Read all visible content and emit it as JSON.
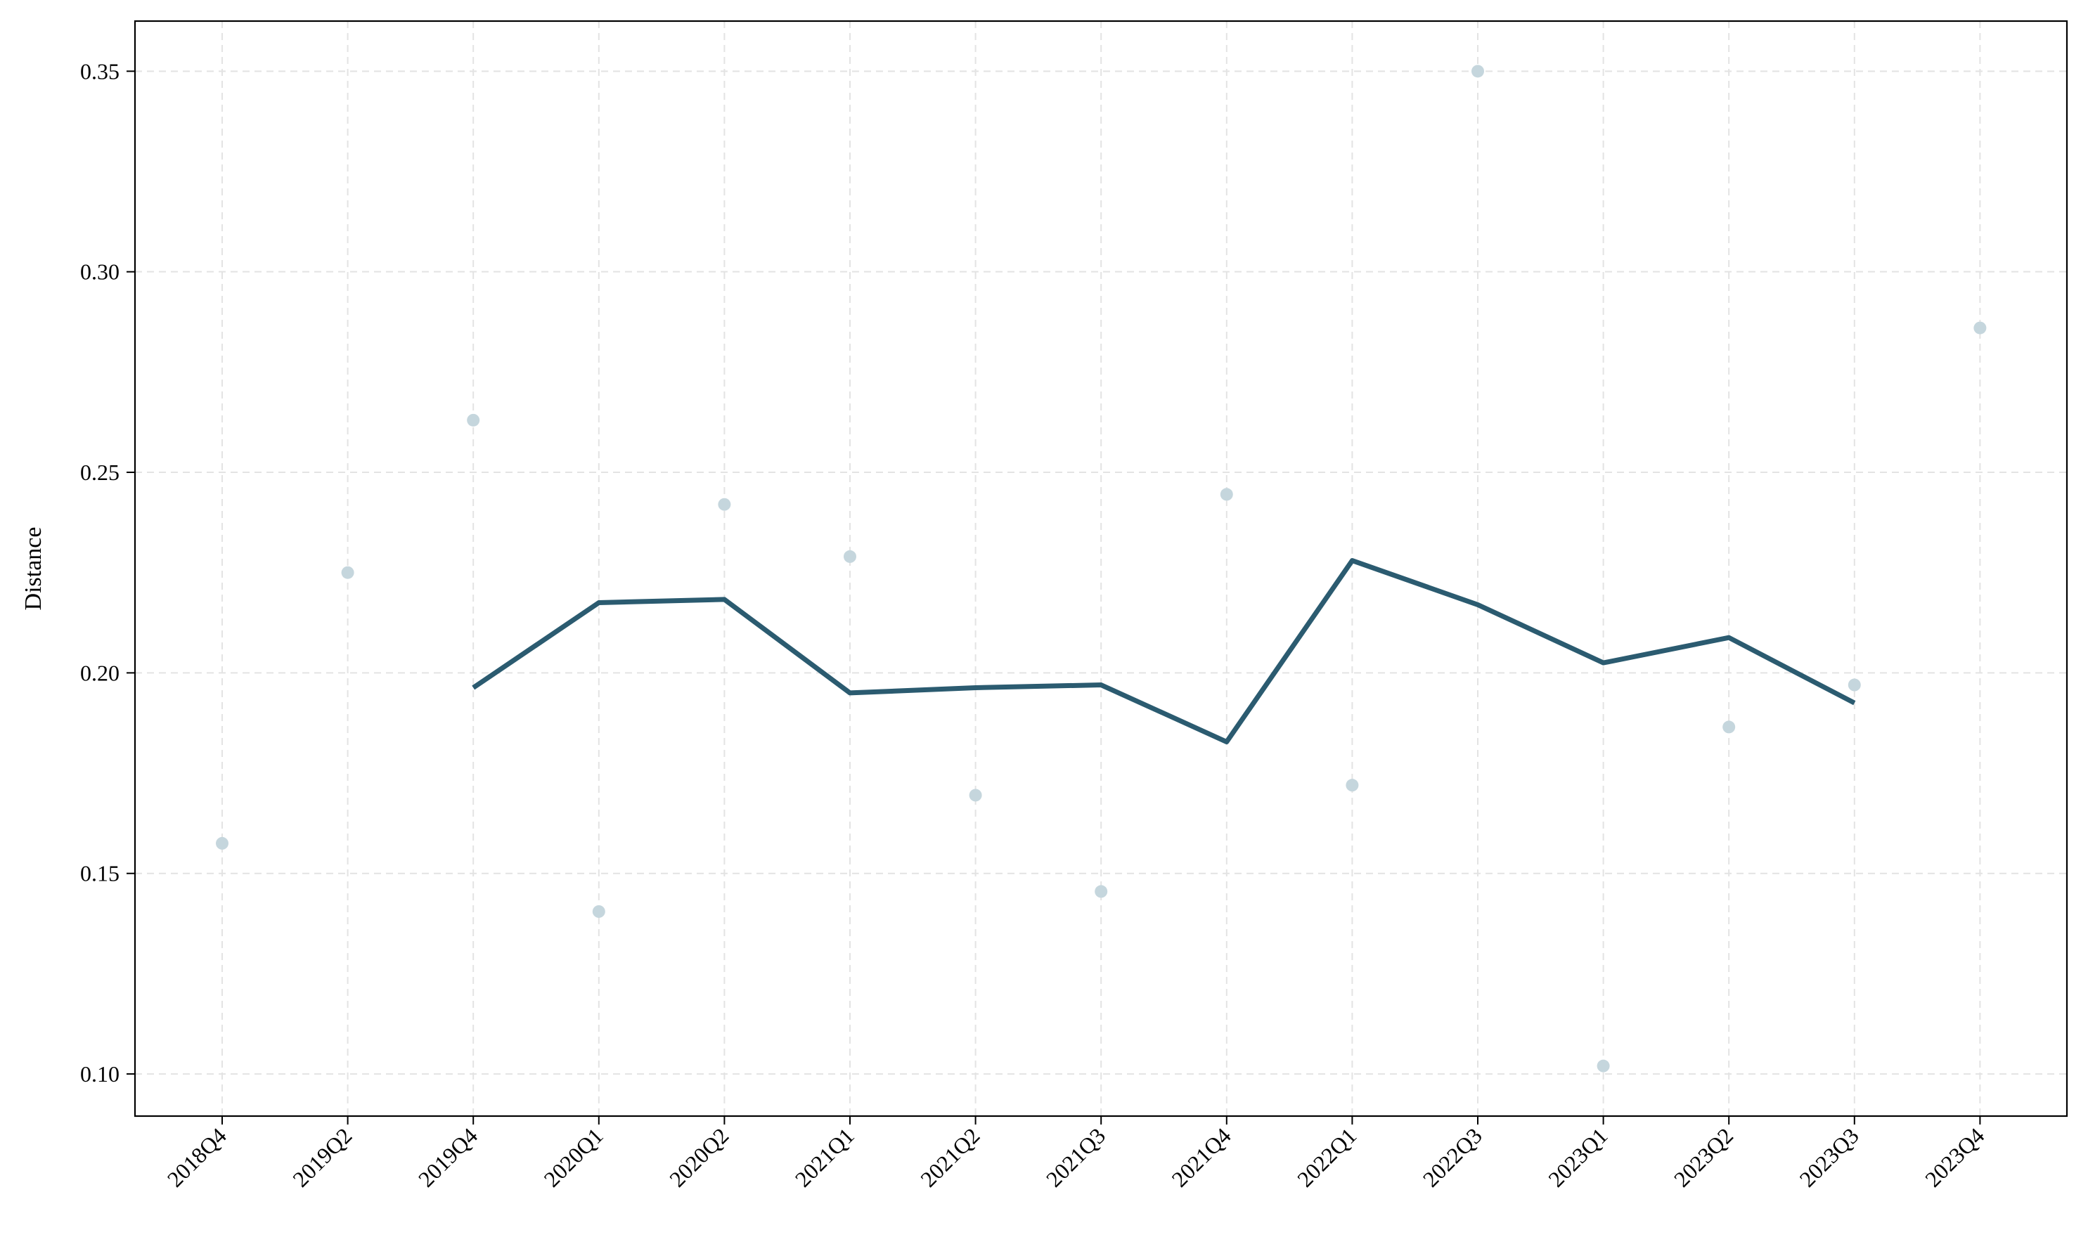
{
  "chart_data": {
    "type": "line",
    "title": "",
    "xlabel": "",
    "ylabel": "Distance",
    "categories": [
      "2018Q4",
      "2019Q2",
      "2019Q4",
      "2020Q1",
      "2020Q2",
      "2021Q1",
      "2021Q2",
      "2021Q3",
      "2021Q4",
      "2022Q1",
      "2022Q3",
      "2023Q1",
      "2023Q2",
      "2023Q3",
      "2023Q4"
    ],
    "series": [
      {
        "kind": "scatter",
        "color": "#c5d6dd",
        "values": [
          0.1575,
          0.225,
          0.263,
          0.1405,
          0.242,
          0.229,
          0.1695,
          0.1455,
          0.2445,
          0.172,
          0.35,
          0.102,
          0.1865,
          0.197,
          0.286
        ]
      },
      {
        "kind": "line",
        "color": "#2b5b70",
        "values": [
          null,
          null,
          0.1963,
          0.2175,
          0.2183,
          0.195,
          0.1963,
          0.197,
          0.1828,
          0.228,
          0.217,
          0.2025,
          0.2088,
          0.1925,
          null
        ]
      }
    ],
    "yticks": [
      "0.10",
      "0.15",
      "0.20",
      "0.25",
      "0.30",
      "0.35"
    ],
    "ylim": [
      0.0895,
      0.3625
    ],
    "grid": true,
    "legend": "none"
  }
}
